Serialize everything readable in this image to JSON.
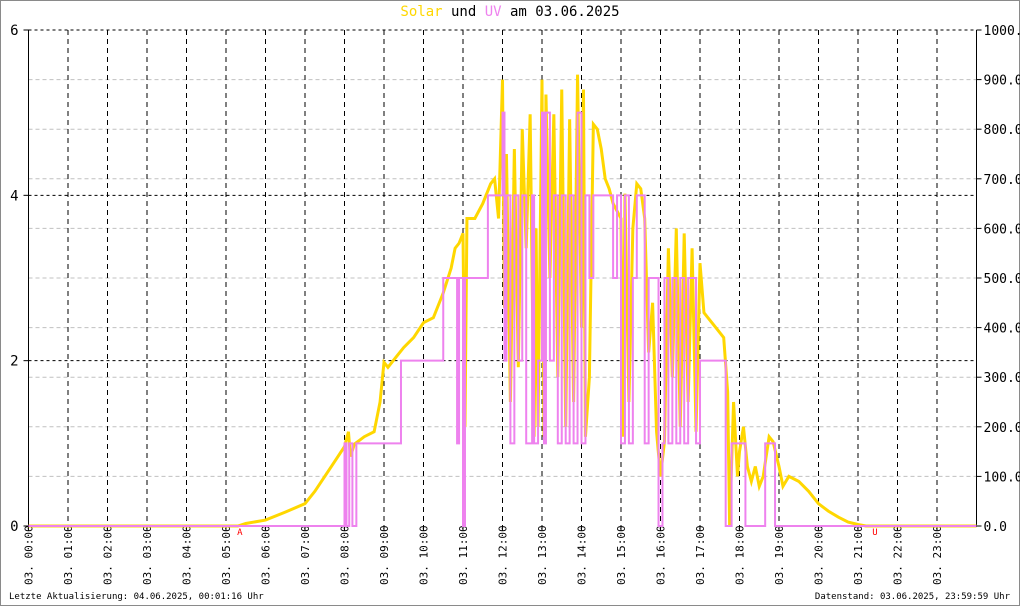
{
  "title": {
    "part1": "Solar",
    "part2": " und ",
    "part3": "UV",
    "part4": " am 03.06.2025"
  },
  "footer": {
    "left": "Letzte Aktualisierung: 04.06.2025, 00:01:16 Uhr",
    "right": "Datenstand: 03.06.2025, 23:59:59 Uhr"
  },
  "chart_data": {
    "type": "line",
    "title": "Solar und UV am 03.06.2025",
    "x_unit": "hour of day",
    "xlim": [
      0,
      24
    ],
    "x_tick_labels": [
      "03. 00:00",
      "03. 01:00",
      "03. 02:00",
      "03. 03:00",
      "03. 04:00",
      "03. 05:00",
      "03. 06:00",
      "03. 07:00",
      "03. 08:00",
      "03. 09:00",
      "03. 10:00",
      "03. 11:00",
      "03. 12:00",
      "03. 13:00",
      "03. 14:00",
      "03. 15:00",
      "03. 16:00",
      "03. 17:00",
      "03. 18:00",
      "03. 19:00",
      "03. 20:00",
      "03. 21:00",
      "03. 22:00",
      "03. 23:00"
    ],
    "y_left": {
      "lim": [
        0,
        6
      ],
      "ticks": [
        "0",
        "2",
        "4",
        "6"
      ],
      "label": "UV"
    },
    "y_right": {
      "lim": [
        0,
        1000
      ],
      "ticks": [
        "0.0",
        "100.0",
        "200.0",
        "300.0",
        "400.0",
        "500.0",
        "600.0",
        "700.0",
        "800.0",
        "900.0",
        "1000.0"
      ],
      "label": "Solar"
    },
    "grid": true,
    "markers": [
      {
        "label": "A",
        "x": 5.35
      },
      {
        "label": "U",
        "x": 21.43
      }
    ],
    "colors": {
      "solar": "#ffd700",
      "uv": "#ee82ee",
      "marker": "#ff0000"
    },
    "series": [
      {
        "name": "Solar",
        "axis": "right",
        "style": "line",
        "points": [
          [
            0,
            0
          ],
          [
            5.3,
            0
          ],
          [
            5.5,
            5
          ],
          [
            6,
            12
          ],
          [
            6.5,
            28
          ],
          [
            7,
            45
          ],
          [
            7.25,
            70
          ],
          [
            7.5,
            100
          ],
          [
            7.75,
            130
          ],
          [
            8.0,
            160
          ],
          [
            8.1,
            190
          ],
          [
            8.15,
            140
          ],
          [
            8.25,
            165
          ],
          [
            8.5,
            180
          ],
          [
            8.75,
            190
          ],
          [
            8.9,
            250
          ],
          [
            9.0,
            330
          ],
          [
            9.1,
            320
          ],
          [
            9.3,
            340
          ],
          [
            9.5,
            360
          ],
          [
            9.75,
            380
          ],
          [
            10,
            410
          ],
          [
            10.25,
            420
          ],
          [
            10.5,
            470
          ],
          [
            10.7,
            520
          ],
          [
            10.8,
            560
          ],
          [
            10.9,
            570
          ],
          [
            11.0,
            590
          ],
          [
            11.05,
            200
          ],
          [
            11.1,
            620
          ],
          [
            11.3,
            620
          ],
          [
            11.5,
            650
          ],
          [
            11.7,
            690
          ],
          [
            11.8,
            700
          ],
          [
            11.9,
            620
          ],
          [
            12.0,
            900
          ],
          [
            12.05,
            440
          ],
          [
            12.1,
            750
          ],
          [
            12.2,
            250
          ],
          [
            12.3,
            760
          ],
          [
            12.4,
            320
          ],
          [
            12.5,
            800
          ],
          [
            12.6,
            560
          ],
          [
            12.7,
            830
          ],
          [
            12.8,
            180
          ],
          [
            12.85,
            600
          ],
          [
            12.9,
            200
          ],
          [
            13.0,
            900
          ],
          [
            13.05,
            180
          ],
          [
            13.1,
            870
          ],
          [
            13.2,
            500
          ],
          [
            13.3,
            830
          ],
          [
            13.4,
            300
          ],
          [
            13.5,
            880
          ],
          [
            13.6,
            200
          ],
          [
            13.7,
            820
          ],
          [
            13.8,
            250
          ],
          [
            13.9,
            910
          ],
          [
            14.0,
            400
          ],
          [
            14.05,
            880
          ],
          [
            14.1,
            180
          ],
          [
            14.2,
            300
          ],
          [
            14.3,
            810
          ],
          [
            14.4,
            800
          ],
          [
            14.5,
            760
          ],
          [
            14.6,
            700
          ],
          [
            14.7,
            680
          ],
          [
            14.8,
            650
          ],
          [
            15.0,
            620
          ],
          [
            15.05,
            180
          ],
          [
            15.1,
            670
          ],
          [
            15.2,
            250
          ],
          [
            15.3,
            600
          ],
          [
            15.4,
            690
          ],
          [
            15.5,
            680
          ],
          [
            15.6,
            620
          ],
          [
            15.7,
            350
          ],
          [
            15.8,
            450
          ],
          [
            15.9,
            190
          ],
          [
            16.0,
            100
          ],
          [
            16.1,
            170
          ],
          [
            16.2,
            560
          ],
          [
            16.3,
            300
          ],
          [
            16.4,
            600
          ],
          [
            16.5,
            200
          ],
          [
            16.6,
            590
          ],
          [
            16.7,
            250
          ],
          [
            16.8,
            560
          ],
          [
            16.9,
            190
          ],
          [
            17.0,
            530
          ],
          [
            17.1,
            430
          ],
          [
            17.2,
            420
          ],
          [
            17.4,
            400
          ],
          [
            17.6,
            380
          ],
          [
            17.7,
            270
          ],
          [
            17.75,
            0
          ],
          [
            17.85,
            250
          ],
          [
            17.95,
            100
          ],
          [
            18.0,
            150
          ],
          [
            18.1,
            200
          ],
          [
            18.2,
            120
          ],
          [
            18.3,
            90
          ],
          [
            18.4,
            120
          ],
          [
            18.5,
            80
          ],
          [
            18.6,
            100
          ],
          [
            18.75,
            180
          ],
          [
            18.85,
            170
          ],
          [
            19.0,
            120
          ],
          [
            19.1,
            80
          ],
          [
            19.25,
            100
          ],
          [
            19.5,
            90
          ],
          [
            19.75,
            70
          ],
          [
            20.0,
            45
          ],
          [
            20.25,
            30
          ],
          [
            20.5,
            18
          ],
          [
            20.75,
            8
          ],
          [
            21.0,
            3
          ],
          [
            21.2,
            0
          ],
          [
            24,
            0
          ]
        ]
      },
      {
        "name": "UV",
        "axis": "left",
        "style": "step",
        "points": [
          [
            0,
            0
          ],
          [
            8.0,
            1
          ],
          [
            8.05,
            0
          ],
          [
            8.12,
            1
          ],
          [
            8.2,
            0
          ],
          [
            8.3,
            1
          ],
          [
            9.43,
            2
          ],
          [
            10.5,
            3
          ],
          [
            10.85,
            1
          ],
          [
            10.9,
            3
          ],
          [
            11.0,
            0
          ],
          [
            11.05,
            3
          ],
          [
            11.63,
            4
          ],
          [
            12.0,
            5
          ],
          [
            12.05,
            2
          ],
          [
            12.1,
            4
          ],
          [
            12.2,
            1
          ],
          [
            12.3,
            4
          ],
          [
            12.4,
            2
          ],
          [
            12.5,
            4
          ],
          [
            12.6,
            1
          ],
          [
            12.75,
            4
          ],
          [
            12.8,
            1
          ],
          [
            12.9,
            2
          ],
          [
            13.0,
            5
          ],
          [
            13.05,
            1
          ],
          [
            13.1,
            5
          ],
          [
            13.2,
            2
          ],
          [
            13.3,
            4
          ],
          [
            13.4,
            1
          ],
          [
            13.5,
            4
          ],
          [
            13.6,
            1
          ],
          [
            13.7,
            4
          ],
          [
            13.8,
            1
          ],
          [
            13.9,
            5
          ],
          [
            14.0,
            1
          ],
          [
            14.1,
            4
          ],
          [
            14.2,
            3
          ],
          [
            14.3,
            4
          ],
          [
            14.8,
            3
          ],
          [
            14.9,
            4
          ],
          [
            15.0,
            1
          ],
          [
            15.1,
            4
          ],
          [
            15.2,
            1
          ],
          [
            15.3,
            3
          ],
          [
            15.4,
            4
          ],
          [
            15.6,
            1
          ],
          [
            15.7,
            3
          ],
          [
            15.95,
            0
          ],
          [
            16.05,
            1
          ],
          [
            16.1,
            3
          ],
          [
            16.2,
            1
          ],
          [
            16.3,
            3
          ],
          [
            16.4,
            1
          ],
          [
            16.5,
            3
          ],
          [
            16.6,
            1
          ],
          [
            16.7,
            3
          ],
          [
            16.9,
            1
          ],
          [
            17.0,
            2
          ],
          [
            17.65,
            0
          ],
          [
            17.8,
            1
          ],
          [
            18.15,
            0
          ],
          [
            18.65,
            1
          ],
          [
            18.9,
            0
          ],
          [
            24,
            0
          ]
        ]
      }
    ]
  }
}
